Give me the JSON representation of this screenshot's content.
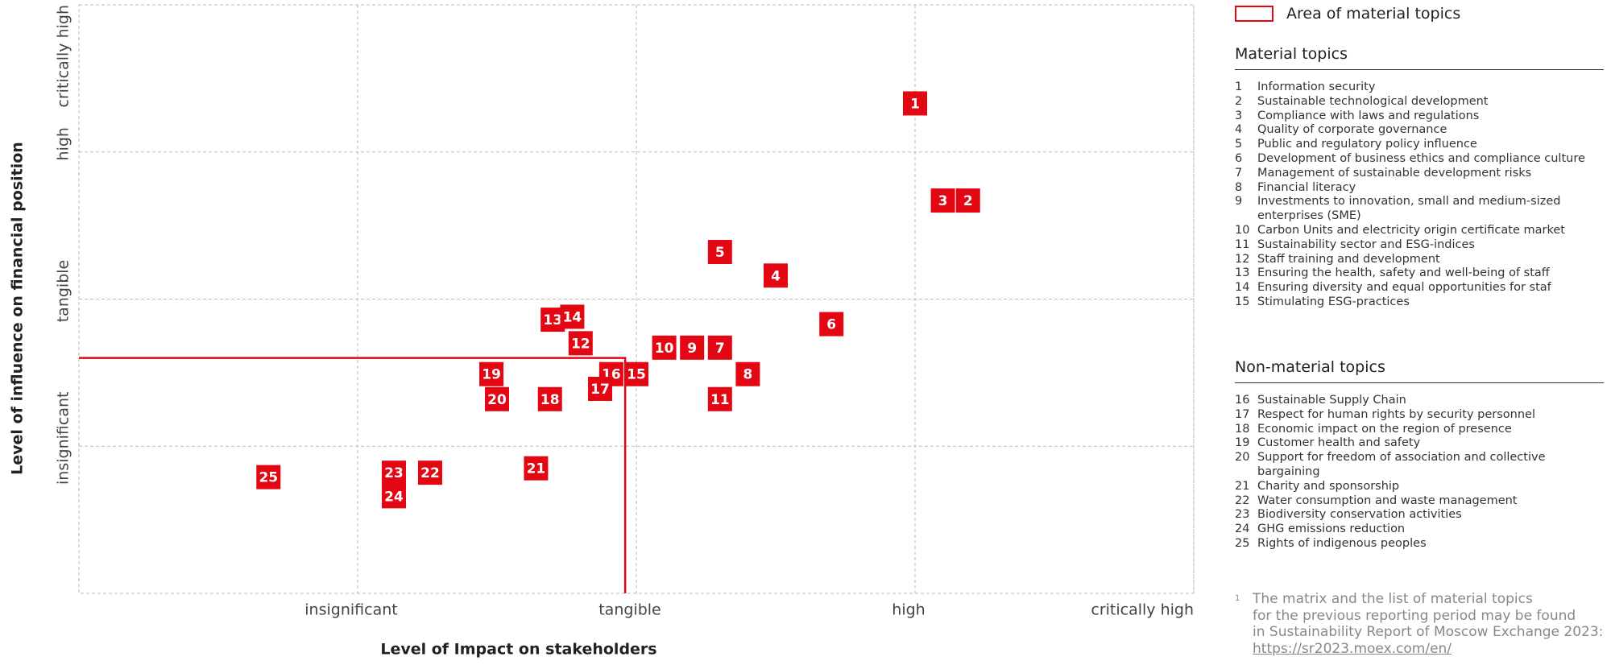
{
  "chart_data": {
    "type": "scatter",
    "xlabel": "Level of Impact on stakeholders",
    "ylabel": "Level of influence on financial position",
    "xlim": [
      0,
      4
    ],
    "ylim": [
      0,
      4
    ],
    "xticks": [
      {
        "value": 1,
        "label": "insignificant"
      },
      {
        "value": 2,
        "label": "tangible"
      },
      {
        "value": 3,
        "label": "high"
      },
      {
        "value": 4,
        "label": "critically high"
      }
    ],
    "yticks": [
      {
        "value": 1,
        "label": "insignificant"
      },
      {
        "value": 2,
        "label": "tangible"
      },
      {
        "value": 3,
        "label": "high"
      },
      {
        "value": 4,
        "label": "critically high"
      }
    ],
    "grid": true,
    "color": "#e30613",
    "labels": [
      "1",
      "3",
      "2",
      "5",
      "4",
      "6",
      "13",
      "14",
      "12",
      "10",
      "9",
      "7",
      "8",
      "19",
      "16",
      "15",
      "17",
      "20",
      "18",
      "11",
      "25",
      "23",
      "22",
      "21",
      "24"
    ],
    "x": [
      3.0,
      3.1,
      3.19,
      2.3,
      2.5,
      2.7,
      1.7,
      1.77,
      1.8,
      2.1,
      2.2,
      2.3,
      2.4,
      1.48,
      1.91,
      2.0,
      1.87,
      1.5,
      1.69,
      2.3,
      0.68,
      1.13,
      1.26,
      1.64,
      1.13
    ],
    "values": [
      3.33,
      2.67,
      2.67,
      2.32,
      2.16,
      1.83,
      1.86,
      1.88,
      1.7,
      1.67,
      1.67,
      1.67,
      1.49,
      1.49,
      1.49,
      1.49,
      1.39,
      1.32,
      1.32,
      1.32,
      0.79,
      0.82,
      0.82,
      0.85,
      0.66
    ],
    "area": {
      "name": "Area of material topics",
      "x": 1.96,
      "y": 1.6,
      "color": "#e30613"
    }
  },
  "material": {
    "title": "Material topics",
    "items": [
      {
        "num": "1",
        "text": "Information security"
      },
      {
        "num": "2",
        "text": "Sustainable technological development"
      },
      {
        "num": "3",
        "text": "Compliance with laws and regulations"
      },
      {
        "num": "4",
        "text": "Quality of corporate governance"
      },
      {
        "num": "5",
        "text": "Public and regulatory policy influence"
      },
      {
        "num": "6",
        "text": "Development of business ethics and compliance culture"
      },
      {
        "num": "7",
        "text": "Management of sustainable development risks"
      },
      {
        "num": "8",
        "text": "Financial literacy"
      },
      {
        "num": "9",
        "text": "Investments to innovation, small and medium-sized enterprises (SME)"
      },
      {
        "num": "10",
        "text": "Carbon Units and electricity origin certificate market"
      },
      {
        "num": "11",
        "text": "Sustainability sector and ESG-indices"
      },
      {
        "num": "12",
        "text": "Staff training and development"
      },
      {
        "num": "13",
        "text": "Ensuring the health, safety and well-being of staff"
      },
      {
        "num": "14",
        "text": "Ensuring diversity and equal opportunities for staf"
      },
      {
        "num": "15",
        "text": "Stimulating ESG-practices"
      }
    ]
  },
  "non_material": {
    "title": "Non-material topics",
    "items": [
      {
        "num": "16",
        "text": "Sustainable Supply Chain"
      },
      {
        "num": "17",
        "text": "Respect for human rights by security personnel"
      },
      {
        "num": "18",
        "text": "Economic impact on the region of presence"
      },
      {
        "num": "19",
        "text": "Customer health and safety"
      },
      {
        "num": "20",
        "text": "Support for freedom of association and collective bargaining"
      },
      {
        "num": "21",
        "text": "Charity and sponsorship"
      },
      {
        "num": "22",
        "text": "Water consumption and waste management"
      },
      {
        "num": "23",
        "text": "Biodiversity conservation activities"
      },
      {
        "num": "24",
        "text": "GHG emissions reduction"
      },
      {
        "num": "25",
        "text": "Rights of indigenous peoples"
      }
    ]
  },
  "footnote": {
    "mark": "1",
    "lines": [
      "The matrix and the list of material topics",
      "for the previous reporting period may be found",
      "in Sustainability Report of Moscow Exchange 2023:"
    ],
    "link": "https://sr2023.moex.com/en/"
  }
}
